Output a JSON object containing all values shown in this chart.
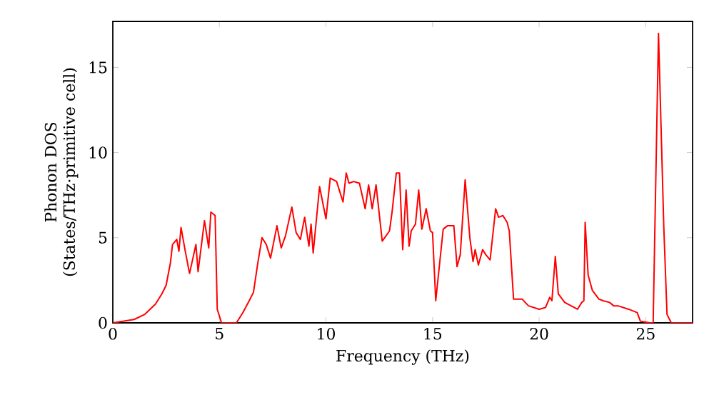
{
  "chart_data": {
    "type": "line",
    "xlabel": "Frequency (THz)",
    "ylabel": "Phonon DOS (States/THz·primitive cell)",
    "x": [
      0,
      1,
      1.5,
      2,
      2.3,
      2.5,
      2.7,
      2.8,
      3.0,
      3.1,
      3.2,
      3.4,
      3.6,
      3.9,
      4.0,
      4.2,
      4.3,
      4.5,
      4.6,
      4.8,
      4.9,
      5.1,
      5.8,
      6.1,
      6.4,
      6.6,
      6.8,
      7.0,
      7.2,
      7.4,
      7.7,
      7.9,
      8.1,
      8.4,
      8.6,
      8.8,
      9.0,
      9.2,
      9.3,
      9.4,
      9.7,
      10.0,
      10.2,
      10.5,
      10.8,
      10.95,
      11.08,
      11.3,
      11.57,
      11.84,
      12.0,
      12.17,
      12.35,
      12.64,
      12.98,
      13.1,
      13.3,
      13.45,
      13.6,
      13.76,
      13.9,
      14.0,
      14.2,
      14.35,
      14.5,
      14.7,
      14.9,
      15.0,
      15.15,
      15.5,
      15.7,
      16.0,
      16.15,
      16.3,
      16.53,
      16.75,
      16.9,
      17.0,
      17.15,
      17.35,
      17.5,
      17.7,
      17.96,
      18.1,
      18.3,
      18.5,
      18.6,
      18.8,
      19.2,
      19.5,
      20.0,
      20.3,
      20.5,
      20.6,
      20.76,
      20.9,
      21.2,
      21.5,
      21.8,
      22.0,
      22.1,
      22.16,
      22.3,
      22.5,
      22.8,
      23.0,
      23.3,
      23.5,
      23.7,
      24.2,
      24.6,
      24.75,
      25.2,
      25.35,
      25.6,
      25.85,
      26.0,
      26.2,
      27.2
    ],
    "series": [
      {
        "color": "#ff0000",
        "values": [
          0,
          0.2,
          0.5,
          1.1,
          1.7,
          2.2,
          3.5,
          4.6,
          4.9,
          4.2,
          5.6,
          4.2,
          2.9,
          4.6,
          3.0,
          5.0,
          6.0,
          4.4,
          6.5,
          6.3,
          0.8,
          0,
          0,
          0.6,
          1.3,
          1.8,
          3.5,
          5.0,
          4.6,
          3.8,
          5.7,
          4.4,
          5.1,
          6.8,
          5.3,
          4.9,
          6.2,
          4.5,
          5.8,
          4.1,
          8.0,
          6.1,
          8.5,
          8.3,
          7.1,
          8.8,
          8.2,
          8.3,
          8.2,
          6.7,
          8.1,
          6.7,
          8.1,
          4.8,
          5.4,
          6.5,
          8.8,
          8.8,
          4.3,
          7.8,
          4.5,
          5.4,
          5.8,
          7.8,
          5.5,
          6.7,
          5.4,
          5.3,
          1.3,
          5.5,
          5.7,
          5.7,
          3.3,
          4.0,
          8.4,
          5.0,
          3.6,
          4.3,
          3.4,
          4.3,
          4.0,
          3.7,
          6.7,
          6.2,
          6.3,
          5.9,
          5.4,
          1.4,
          1.4,
          1.0,
          0.8,
          0.9,
          1.5,
          1.3,
          3.9,
          1.7,
          1.2,
          1.0,
          0.8,
          1.2,
          1.3,
          5.9,
          2.8,
          1.9,
          1.4,
          1.3,
          1.2,
          1.0,
          1.0,
          0.8,
          0.6,
          0.1,
          0,
          0,
          17.0,
          5.6,
          0.5,
          0,
          0
        ]
      }
    ],
    "xlim": [
      0,
      27.2
    ],
    "ylim": [
      0,
      17.7
    ],
    "xticks": [
      0,
      5,
      10,
      15,
      20,
      25
    ],
    "yticks": [
      0,
      5,
      10,
      15
    ],
    "grid": false,
    "marker": "none",
    "line_style": "solid"
  }
}
